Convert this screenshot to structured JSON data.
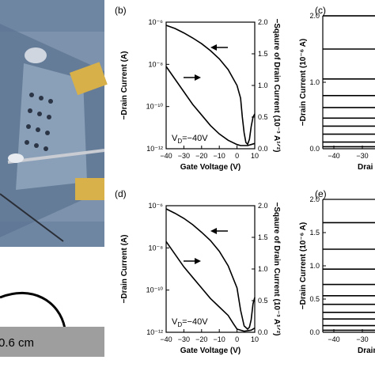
{
  "colors": {
    "curve": "#000000",
    "axis": "#000000",
    "background": "#ffffff"
  },
  "photo": {
    "description_icon": "device-photo",
    "scale_label": "0.6 cm"
  },
  "panel_b": {
    "letter": "(b)",
    "condition": "V",
    "condition_sub": "D",
    "condition_val": "=−40V"
  },
  "panel_d": {
    "letter": "(d)",
    "condition": "V",
    "condition_sub": "D",
    "condition_val": "=−40V"
  },
  "panel_c": {
    "letter": "(c)",
    "xlabel": "Drai"
  },
  "panel_e": {
    "letter": "(e)",
    "xlabel": "Drain"
  },
  "chart_data": [
    {
      "type": "line",
      "panel": "(b)",
      "xlabel": "Gate Voltage (V)",
      "ylabel": "−Drain Current (A)",
      "y2label": "−Sqaure of Drain Current (10⁻³ A¹ᐟ²)",
      "xlim": [
        -40,
        10
      ],
      "ylim_log": [
        -12,
        -6
      ],
      "y2lim": [
        0,
        2.0
      ],
      "xticks": [
        "−40",
        "−30",
        "−20",
        "−10",
        "0",
        "10"
      ],
      "yticks": [
        "10⁻⁶",
        "10⁻⁸",
        "10⁻¹⁰",
        "10⁻¹²"
      ],
      "y2ticks": [
        "0.0",
        "0.5",
        "1.0",
        "1.5",
        "2.0"
      ],
      "annotation": "V_D=−40V",
      "series": [
        {
          "axis": "log",
          "x": [
            -40,
            -35,
            -30,
            -25,
            -20,
            -15,
            -10,
            -5,
            0,
            2,
            4,
            6,
            8,
            10
          ],
          "y": [
            -8.1,
            -8.7,
            -9.3,
            -9.9,
            -10.4,
            -10.9,
            -11.3,
            -11.6,
            -11.8,
            -11.85,
            -11.85,
            -11.85,
            -11.8,
            -11.75
          ]
        },
        {
          "axis": "sqrt",
          "x": [
            -40,
            -35,
            -30,
            -25,
            -20,
            -15,
            -10,
            -5,
            0,
            2,
            3,
            4,
            5,
            6,
            7,
            8,
            9,
            10
          ],
          "y": [
            1.95,
            1.9,
            1.83,
            1.75,
            1.66,
            1.55,
            1.42,
            1.25,
            1.0,
            0.8,
            0.5,
            0.25,
            0.1,
            0.07,
            0.15,
            0.35,
            0.5,
            0.55
          ]
        }
      ]
    },
    {
      "type": "line",
      "panel": "(d)",
      "xlabel": "Gate Voltage (V)",
      "ylabel": "−Drain Current (A)",
      "y2label": "−Sqaure of Drain Current (10⁻³ A¹ᐟ²)",
      "xlim": [
        -40,
        10
      ],
      "ylim_log": [
        -12,
        -6
      ],
      "y2lim": [
        0,
        2.0
      ],
      "xticks": [
        "−40",
        "−30",
        "−20",
        "−10",
        "0",
        "10"
      ],
      "yticks": [
        "10⁻⁶",
        "10⁻⁸",
        "10⁻¹⁰",
        "10⁻¹²"
      ],
      "y2ticks": [
        "0.0",
        "0.5",
        "1.0",
        "1.5",
        "2.0"
      ],
      "annotation": "V_D=−40V",
      "series": [
        {
          "axis": "log",
          "x": [
            -40,
            -35,
            -30,
            -25,
            -20,
            -15,
            -10,
            -5,
            -2,
            0,
            4,
            8,
            10
          ],
          "y": [
            -7.7,
            -8.3,
            -8.9,
            -9.4,
            -9.9,
            -10.4,
            -10.8,
            -11.2,
            -11.6,
            -11.85,
            -11.95,
            -11.9,
            -11.8
          ]
        },
        {
          "axis": "sqrt",
          "x": [
            -40,
            -35,
            -30,
            -25,
            -20,
            -15,
            -10,
            -5,
            0,
            2,
            4,
            6,
            7,
            8,
            9,
            10
          ],
          "y": [
            1.95,
            1.88,
            1.8,
            1.7,
            1.58,
            1.45,
            1.28,
            1.05,
            0.7,
            0.35,
            0.1,
            0.05,
            0.08,
            0.2,
            0.45,
            0.55
          ]
        }
      ]
    },
    {
      "type": "line",
      "panel": "(c)",
      "xlabel": "Drai",
      "ylabel": "−Drain Current (10⁻⁶ A)",
      "ylim": [
        0,
        2.0
      ],
      "yticks": [
        "0.0",
        "1.0",
        "2.0"
      ],
      "xticks": [
        "−40",
        "−30"
      ],
      "levels": [
        2.0,
        1.5,
        1.05,
        0.8,
        0.62,
        0.46,
        0.34,
        0.22,
        0.1,
        0.03
      ]
    },
    {
      "type": "line",
      "panel": "(e)",
      "xlabel": "Drain",
      "ylabel": "−Drain Current (10⁻⁶ A)",
      "ylim": [
        0,
        2.0
      ],
      "yticks": [
        "0.0",
        "0.5",
        "1.0",
        "1.5",
        "2.0"
      ],
      "xticks": [
        "−40",
        "−30"
      ],
      "levels": [
        1.65,
        1.25,
        0.95,
        0.72,
        0.55,
        0.42,
        0.3,
        0.2,
        0.1,
        0.03
      ]
    }
  ]
}
